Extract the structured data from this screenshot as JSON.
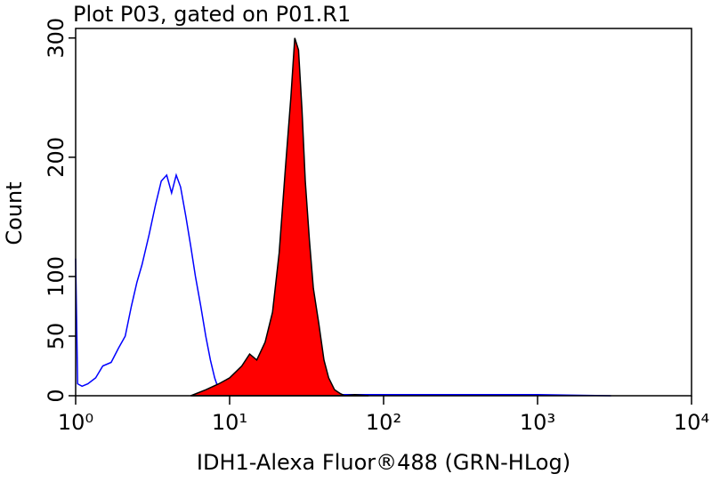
{
  "chart_data": {
    "type": "histogram-overlay",
    "title": "Plot P03, gated on P01.R1",
    "x_label": "IDH1-Alexa Fluor®488 (GRN-HLog)",
    "y_label": "Count",
    "log_x": true,
    "xlim": [
      1,
      10000
    ],
    "xticks": [
      {
        "value": 1,
        "label": "10⁰"
      },
      {
        "value": 10,
        "label": "10¹"
      },
      {
        "value": 100,
        "label": "10²"
      },
      {
        "value": 1000,
        "label": "10³"
      },
      {
        "value": 10000,
        "label": "10⁴"
      }
    ],
    "ylim": [
      0,
      308
    ],
    "yticks": [
      0,
      50,
      100,
      200,
      300
    ],
    "series": [
      {
        "color": "#0000ff",
        "fill": false,
        "x": [
          1,
          1.03,
          1.1,
          1.2,
          1.35,
          1.5,
          1.7,
          1.9,
          2.1,
          2.3,
          2.5,
          2.7,
          3.0,
          3.3,
          3.6,
          3.9,
          4.2,
          4.5,
          4.8,
          5.2,
          5.6,
          6.0,
          6.5,
          7.0,
          7.5,
          8.0,
          8.5,
          9.0,
          20,
          50,
          100,
          200,
          500,
          1000,
          3000
        ],
        "values": [
          115,
          10,
          8,
          10,
          15,
          25,
          28,
          40,
          50,
          75,
          95,
          110,
          135,
          160,
          180,
          185,
          170,
          185,
          175,
          150,
          125,
          100,
          75,
          50,
          30,
          15,
          5,
          2,
          1,
          1,
          1,
          1,
          1,
          1,
          0
        ]
      },
      {
        "color": "#ff0000",
        "fill": true,
        "x": [
          5.6,
          7,
          8.5,
          10,
          12,
          13.5,
          15,
          17,
          19,
          21,
          23,
          25,
          26.5,
          28,
          29.5,
          31,
          33,
          35,
          38,
          41,
          44,
          48,
          52,
          56,
          65,
          80
        ],
        "values": [
          0,
          5,
          10,
          15,
          25,
          35,
          30,
          45,
          70,
          120,
          190,
          250,
          300,
          290,
          240,
          180,
          130,
          90,
          60,
          30,
          15,
          5,
          2,
          0,
          1,
          0
        ]
      }
    ]
  }
}
